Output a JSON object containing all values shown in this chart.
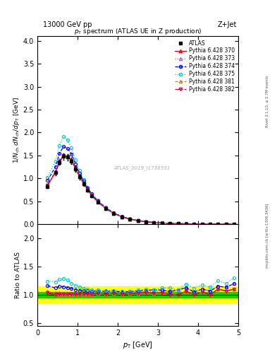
{
  "title_top": "13000 GeV pp",
  "title_right": "Z+Jet",
  "plot_title": "p_{T} spectrum (ATLAS UE in Z production)",
  "xlabel": "p_{T} [GeV]",
  "ylabel_main": "1/N_{ch} dN_{ch}/dp_{T} [GeV]",
  "ylabel_ratio": "Ratio to ATLAS",
  "watermark": "ATLAS_2019_I1736531",
  "right_label": "Rivet 3.1.10, ≥ 2.7M events",
  "right_label2": "mcplots.cern.ch [arXiv:1306.3436]",
  "xlim": [
    0,
    5.0
  ],
  "ylim_main": [
    0,
    4.1
  ],
  "ylim_ratio": [
    0.45,
    2.25
  ],
  "series": [
    {
      "label": "ATLAS",
      "color": "#000000",
      "marker": "s",
      "markersize": 3.5,
      "linestyle": "none",
      "zorder": 10,
      "filled": true,
      "x": [
        0.25,
        0.45,
        0.55,
        0.65,
        0.75,
        0.85,
        0.95,
        1.05,
        1.15,
        1.25,
        1.35,
        1.5,
        1.7,
        1.9,
        2.1,
        2.3,
        2.5,
        2.7,
        2.9,
        3.1,
        3.3,
        3.5,
        3.7,
        3.9,
        4.1,
        4.3,
        4.5,
        4.7,
        4.9
      ],
      "y": [
        0.82,
        1.12,
        1.35,
        1.48,
        1.46,
        1.38,
        1.2,
        1.03,
        0.88,
        0.74,
        0.62,
        0.48,
        0.34,
        0.23,
        0.16,
        0.11,
        0.075,
        0.051,
        0.035,
        0.024,
        0.017,
        0.012,
        0.008,
        0.006,
        0.004,
        0.003,
        0.002,
        0.0015,
        0.001
      ],
      "yerr": [
        0.04,
        0.05,
        0.06,
        0.07,
        0.07,
        0.07,
        0.06,
        0.05,
        0.04,
        0.035,
        0.03,
        0.023,
        0.016,
        0.011,
        0.008,
        0.005,
        0.004,
        0.0025,
        0.002,
        0.0012,
        0.0009,
        0.0006,
        0.0004,
        0.0003,
        0.0002,
        0.00015,
        0.0001,
        0.0001,
        5e-05
      ]
    },
    {
      "label": "Pythia 6.428 370",
      "color": "#e8000b",
      "marker": "^",
      "markersize": 3,
      "linestyle": "-",
      "zorder": 5,
      "filled": false,
      "x": [
        0.25,
        0.45,
        0.55,
        0.65,
        0.75,
        0.85,
        0.95,
        1.05,
        1.15,
        1.25,
        1.35,
        1.5,
        1.7,
        1.9,
        2.1,
        2.3,
        2.5,
        2.7,
        2.9,
        3.1,
        3.3,
        3.5,
        3.7,
        3.9,
        4.1,
        4.3,
        4.5,
        4.7,
        4.9
      ],
      "y": [
        0.84,
        1.13,
        1.36,
        1.49,
        1.47,
        1.39,
        1.21,
        1.04,
        0.89,
        0.75,
        0.63,
        0.49,
        0.345,
        0.235,
        0.162,
        0.112,
        0.077,
        0.053,
        0.036,
        0.025,
        0.017,
        0.012,
        0.0085,
        0.006,
        0.0042,
        0.003,
        0.0022,
        0.0016,
        0.0011
      ]
    },
    {
      "label": "Pythia 6.428 373",
      "color": "#cc44ff",
      "marker": "^",
      "markersize": 3,
      "linestyle": ":",
      "zorder": 5,
      "filled": false,
      "x": [
        0.25,
        0.45,
        0.55,
        0.65,
        0.75,
        0.85,
        0.95,
        1.05,
        1.15,
        1.25,
        1.35,
        1.5,
        1.7,
        1.9,
        2.1,
        2.3,
        2.5,
        2.7,
        2.9,
        3.1,
        3.3,
        3.5,
        3.7,
        3.9,
        4.1,
        4.3,
        4.5,
        4.7,
        4.9
      ],
      "y": [
        0.87,
        1.16,
        1.4,
        1.52,
        1.49,
        1.41,
        1.22,
        1.05,
        0.9,
        0.76,
        0.64,
        0.5,
        0.355,
        0.241,
        0.166,
        0.115,
        0.079,
        0.054,
        0.037,
        0.026,
        0.018,
        0.013,
        0.009,
        0.0063,
        0.0044,
        0.0032,
        0.0023,
        0.0017,
        0.0012
      ]
    },
    {
      "label": "Pythia 6.428 374",
      "color": "#0000ff",
      "marker": "o",
      "markersize": 3,
      "linestyle": "--",
      "zorder": 5,
      "filled": false,
      "x": [
        0.25,
        0.45,
        0.55,
        0.65,
        0.75,
        0.85,
        0.95,
        1.05,
        1.15,
        1.25,
        1.35,
        1.5,
        1.7,
        1.9,
        2.1,
        2.3,
        2.5,
        2.7,
        2.9,
        3.1,
        3.3,
        3.5,
        3.7,
        3.9,
        4.1,
        4.3,
        4.5,
        4.7,
        4.9
      ],
      "y": [
        0.95,
        1.25,
        1.55,
        1.69,
        1.65,
        1.53,
        1.31,
        1.11,
        0.94,
        0.79,
        0.66,
        0.51,
        0.36,
        0.245,
        0.168,
        0.116,
        0.08,
        0.055,
        0.038,
        0.026,
        0.018,
        0.013,
        0.009,
        0.0063,
        0.0044,
        0.0032,
        0.0023,
        0.0017,
        0.0012
      ]
    },
    {
      "label": "Pythia 6.428 375",
      "color": "#00cccc",
      "marker": "o",
      "markersize": 3,
      "linestyle": ":",
      "zorder": 4,
      "filled": false,
      "x": [
        0.25,
        0.45,
        0.55,
        0.65,
        0.75,
        0.85,
        0.95,
        1.05,
        1.15,
        1.25,
        1.35,
        1.5,
        1.7,
        1.9,
        2.1,
        2.3,
        2.5,
        2.7,
        2.9,
        3.1,
        3.3,
        3.5,
        3.7,
        3.9,
        4.1,
        4.3,
        4.5,
        4.7,
        4.9
      ],
      "y": [
        1.02,
        1.38,
        1.72,
        1.91,
        1.84,
        1.66,
        1.4,
        1.17,
        0.98,
        0.81,
        0.67,
        0.52,
        0.365,
        0.248,
        0.17,
        0.117,
        0.081,
        0.056,
        0.038,
        0.027,
        0.019,
        0.013,
        0.0095,
        0.0067,
        0.0047,
        0.0034,
        0.0025,
        0.0018,
        0.0013
      ]
    },
    {
      "label": "Pythia 6.428 381",
      "color": "#cc8800",
      "marker": "^",
      "markersize": 3,
      "linestyle": "--",
      "zorder": 5,
      "filled": false,
      "x": [
        0.25,
        0.45,
        0.55,
        0.65,
        0.75,
        0.85,
        0.95,
        1.05,
        1.15,
        1.25,
        1.35,
        1.5,
        1.7,
        1.9,
        2.1,
        2.3,
        2.5,
        2.7,
        2.9,
        3.1,
        3.3,
        3.5,
        3.7,
        3.9,
        4.1,
        4.3,
        4.5,
        4.7,
        4.9
      ],
      "y": [
        0.86,
        1.14,
        1.37,
        1.5,
        1.47,
        1.39,
        1.21,
        1.04,
        0.89,
        0.75,
        0.63,
        0.49,
        0.345,
        0.235,
        0.162,
        0.112,
        0.077,
        0.053,
        0.036,
        0.025,
        0.017,
        0.012,
        0.0085,
        0.006,
        0.0042,
        0.003,
        0.0022,
        0.0016,
        0.0011
      ]
    },
    {
      "label": "Pythia 6.428 382",
      "color": "#cc0044",
      "marker": "v",
      "markersize": 3,
      "linestyle": "-.",
      "zorder": 5,
      "filled": false,
      "x": [
        0.25,
        0.45,
        0.55,
        0.65,
        0.75,
        0.85,
        0.95,
        1.05,
        1.15,
        1.25,
        1.35,
        1.5,
        1.7,
        1.9,
        2.1,
        2.3,
        2.5,
        2.7,
        2.9,
        3.1,
        3.3,
        3.5,
        3.7,
        3.9,
        4.1,
        4.3,
        4.5,
        4.7,
        4.9
      ],
      "y": [
        0.85,
        1.13,
        1.36,
        1.49,
        1.47,
        1.39,
        1.21,
        1.04,
        0.89,
        0.75,
        0.63,
        0.49,
        0.345,
        0.235,
        0.162,
        0.112,
        0.077,
        0.053,
        0.036,
        0.025,
        0.017,
        0.012,
        0.0085,
        0.006,
        0.0042,
        0.003,
        0.0022,
        0.0016,
        0.0011
      ]
    }
  ],
  "ratio_series": [
    {
      "label": "Pythia 6.428 370",
      "color": "#e8000b",
      "marker": "^",
      "markersize": 3,
      "linestyle": "-",
      "x": [
        0.25,
        0.45,
        0.55,
        0.65,
        0.75,
        0.85,
        0.95,
        1.05,
        1.15,
        1.25,
        1.35,
        1.5,
        1.7,
        1.9,
        2.1,
        2.3,
        2.5,
        2.7,
        2.9,
        3.1,
        3.3,
        3.5,
        3.7,
        3.9,
        4.1,
        4.3,
        4.5,
        4.7,
        4.9
      ],
      "y": [
        1.02,
        1.01,
        1.01,
        1.01,
        1.01,
        1.007,
        1.008,
        1.01,
        1.011,
        1.013,
        1.016,
        1.02,
        1.015,
        1.022,
        1.013,
        1.018,
        1.027,
        1.039,
        1.029,
        1.042,
        1.0,
        1.0,
        1.0625,
        1.0,
        1.05,
        1.0,
        1.1,
        1.067,
        1.1
      ]
    },
    {
      "label": "Pythia 6.428 373",
      "color": "#cc44ff",
      "marker": "^",
      "markersize": 3,
      "linestyle": ":",
      "x": [
        0.25,
        0.45,
        0.55,
        0.65,
        0.75,
        0.85,
        0.95,
        1.05,
        1.15,
        1.25,
        1.35,
        1.5,
        1.7,
        1.9,
        2.1,
        2.3,
        2.5,
        2.7,
        2.9,
        3.1,
        3.3,
        3.5,
        3.7,
        3.9,
        4.1,
        4.3,
        4.5,
        4.7,
        4.9
      ],
      "y": [
        1.06,
        1.036,
        1.037,
        1.027,
        1.02,
        1.022,
        1.017,
        1.019,
        1.023,
        1.027,
        1.032,
        1.042,
        1.044,
        1.048,
        1.038,
        1.045,
        1.053,
        1.059,
        1.057,
        1.083,
        1.059,
        1.083,
        1.125,
        1.05,
        1.1,
        1.067,
        1.15,
        1.133,
        1.2
      ]
    },
    {
      "label": "Pythia 6.428 374",
      "color": "#0000ff",
      "marker": "o",
      "markersize": 3,
      "linestyle": "--",
      "x": [
        0.25,
        0.45,
        0.55,
        0.65,
        0.75,
        0.85,
        0.95,
        1.05,
        1.15,
        1.25,
        1.35,
        1.5,
        1.7,
        1.9,
        2.1,
        2.3,
        2.5,
        2.7,
        2.9,
        3.1,
        3.3,
        3.5,
        3.7,
        3.9,
        4.1,
        4.3,
        4.5,
        4.7,
        4.9
      ],
      "y": [
        1.16,
        1.12,
        1.15,
        1.14,
        1.13,
        1.11,
        1.092,
        1.078,
        1.068,
        1.068,
        1.065,
        1.063,
        1.059,
        1.065,
        1.05,
        1.055,
        1.067,
        1.078,
        1.086,
        1.083,
        1.059,
        1.083,
        1.125,
        1.05,
        1.1,
        1.067,
        1.15,
        1.133,
        1.2
      ]
    },
    {
      "label": "Pythia 6.428 375",
      "color": "#00cccc",
      "marker": "o",
      "markersize": 3,
      "linestyle": ":",
      "x": [
        0.25,
        0.45,
        0.55,
        0.65,
        0.75,
        0.85,
        0.95,
        1.05,
        1.15,
        1.25,
        1.35,
        1.5,
        1.7,
        1.9,
        2.1,
        2.3,
        2.5,
        2.7,
        2.9,
        3.1,
        3.3,
        3.5,
        3.7,
        3.9,
        4.1,
        4.3,
        4.5,
        4.7,
        4.9
      ],
      "y": [
        1.24,
        1.23,
        1.27,
        1.29,
        1.26,
        1.2,
        1.167,
        1.136,
        1.114,
        1.095,
        1.081,
        1.083,
        1.074,
        1.078,
        1.063,
        1.064,
        1.08,
        1.098,
        1.086,
        1.125,
        1.118,
        1.083,
        1.188,
        1.117,
        1.175,
        1.133,
        1.25,
        1.2,
        1.3
      ]
    },
    {
      "label": "Pythia 6.428 381",
      "color": "#cc8800",
      "marker": "^",
      "markersize": 3,
      "linestyle": "--",
      "x": [
        0.25,
        0.45,
        0.55,
        0.65,
        0.75,
        0.85,
        0.95,
        1.05,
        1.15,
        1.25,
        1.35,
        1.5,
        1.7,
        1.9,
        2.1,
        2.3,
        2.5,
        2.7,
        2.9,
        3.1,
        3.3,
        3.5,
        3.7,
        3.9,
        4.1,
        4.3,
        4.5,
        4.7,
        4.9
      ],
      "y": [
        1.05,
        1.018,
        1.015,
        1.013,
        1.007,
        1.007,
        1.008,
        1.01,
        1.011,
        1.013,
        1.016,
        1.02,
        1.015,
        1.022,
        1.013,
        1.018,
        1.027,
        1.039,
        1.029,
        1.042,
        1.0,
        1.0,
        1.0625,
        1.0,
        1.05,
        1.0,
        1.1,
        1.067,
        1.1
      ]
    },
    {
      "label": "Pythia 6.428 382",
      "color": "#cc0044",
      "marker": "v",
      "markersize": 3,
      "linestyle": "-.",
      "x": [
        0.25,
        0.45,
        0.55,
        0.65,
        0.75,
        0.85,
        0.95,
        1.05,
        1.15,
        1.25,
        1.35,
        1.5,
        1.7,
        1.9,
        2.1,
        2.3,
        2.5,
        2.7,
        2.9,
        3.1,
        3.3,
        3.5,
        3.7,
        3.9,
        4.1,
        4.3,
        4.5,
        4.7,
        4.9
      ],
      "y": [
        1.037,
        1.009,
        1.007,
        1.007,
        1.007,
        1.007,
        1.008,
        1.01,
        1.011,
        1.013,
        1.016,
        1.02,
        1.015,
        1.022,
        1.013,
        1.018,
        1.027,
        1.039,
        1.029,
        1.042,
        1.0,
        1.0,
        1.0625,
        1.0,
        1.05,
        1.0,
        1.1,
        1.067,
        1.1
      ]
    }
  ]
}
